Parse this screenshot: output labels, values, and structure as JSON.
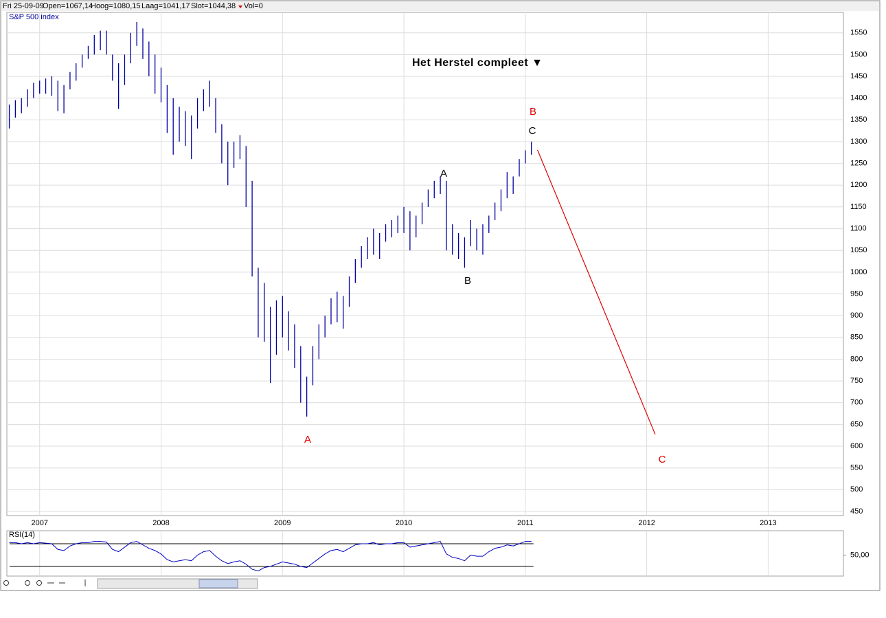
{
  "header": {
    "fields": [
      "Fri 25-09-09",
      "Open=1067,14",
      "Hoog=1080,15",
      "Laag=1041,17",
      "Slot=1044,38",
      "Vol=0"
    ]
  },
  "chart_data": [
    {
      "type": "hilo",
      "annotation": "Het Herstel compleet ▼",
      "x": [
        2006.75,
        2006.8,
        2006.85,
        2006.9,
        2006.95,
        2007.0,
        2007.05,
        2007.1,
        2007.15,
        2007.2,
        2007.25,
        2007.3,
        2007.35,
        2007.4,
        2007.45,
        2007.5,
        2007.55,
        2007.6,
        2007.65,
        2007.7,
        2007.75,
        2007.8,
        2007.85,
        2007.9,
        2007.95,
        2008.0,
        2008.05,
        2008.1,
        2008.15,
        2008.2,
        2008.25,
        2008.3,
        2008.35,
        2008.4,
        2008.45,
        2008.5,
        2008.55,
        2008.6,
        2008.65,
        2008.7,
        2008.75,
        2008.8,
        2008.85,
        2008.9,
        2008.95,
        2009.0,
        2009.05,
        2009.1,
        2009.15,
        2009.2,
        2009.25,
        2009.3,
        2009.35,
        2009.4,
        2009.45,
        2009.5,
        2009.55,
        2009.6,
        2009.65,
        2009.7,
        2009.75,
        2009.8,
        2009.85,
        2009.9,
        2009.95,
        2010.0,
        2010.05,
        2010.1,
        2010.15,
        2010.2,
        2010.25,
        2010.3,
        2010.35,
        2010.4,
        2010.45,
        2010.5,
        2010.55,
        2010.6,
        2010.65,
        2010.7,
        2010.75,
        2010.8,
        2010.85,
        2010.9,
        2010.95,
        2011.0,
        2011.05
      ],
      "series": [
        {
          "name": "S&P 500 index",
          "color": "#0000a0",
          "high": [
            1385,
            1395,
            1400,
            1420,
            1435,
            1440,
            1445,
            1450,
            1440,
            1430,
            1460,
            1480,
            1500,
            1520,
            1545,
            1555,
            1555,
            1500,
            1480,
            1500,
            1550,
            1575,
            1560,
            1530,
            1500,
            1470,
            1430,
            1400,
            1380,
            1370,
            1360,
            1400,
            1420,
            1440,
            1400,
            1340,
            1300,
            1300,
            1315,
            1290,
            1210,
            1010,
            975,
            920,
            935,
            945,
            910,
            880,
            830,
            760,
            830,
            880,
            900,
            940,
            955,
            945,
            990,
            1030,
            1060,
            1080,
            1100,
            1090,
            1110,
            1120,
            1130,
            1150,
            1140,
            1130,
            1160,
            1190,
            1210,
            1220,
            1210,
            1110,
            1090,
            1080,
            1120,
            1100,
            1110,
            1130,
            1160,
            1190,
            1230,
            1220,
            1260,
            1280,
            1300
          ],
          "low": [
            1330,
            1355,
            1365,
            1380,
            1400,
            1410,
            1410,
            1405,
            1370,
            1365,
            1420,
            1440,
            1470,
            1490,
            1500,
            1510,
            1500,
            1440,
            1375,
            1430,
            1480,
            1520,
            1490,
            1450,
            1410,
            1390,
            1320,
            1270,
            1300,
            1290,
            1260,
            1330,
            1370,
            1380,
            1320,
            1250,
            1200,
            1240,
            1260,
            1150,
            990,
            850,
            840,
            745,
            810,
            850,
            820,
            780,
            700,
            668,
            740,
            800,
            850,
            880,
            885,
            870,
            920,
            975,
            1010,
            1030,
            1040,
            1030,
            1070,
            1080,
            1090,
            1090,
            1050,
            1080,
            1110,
            1150,
            1170,
            1180,
            1050,
            1040,
            1030,
            1010,
            1060,
            1050,
            1040,
            1090,
            1120,
            1140,
            1170,
            1180,
            1220,
            1250,
            1270
          ]
        }
      ],
      "projection": {
        "x": [
          2011.1,
          2012.07
        ],
        "values": [
          1281,
          627
        ],
        "color": "#e00000"
      },
      "wave_labels": [
        {
          "text": "A",
          "color": "#e00000"
        },
        {
          "text": "B",
          "color": "#e00000"
        },
        {
          "text": "C",
          "color": "#e00000"
        },
        {
          "text": "A",
          "color": "#000000"
        },
        {
          "text": "B",
          "color": "#000000"
        },
        {
          "text": "C",
          "color": "#000000"
        }
      ],
      "xlim": [
        2006.73,
        2013.62
      ],
      "xticks": [
        2007,
        2008,
        2009,
        2010,
        2011,
        2012,
        2013
      ],
      "ylim": [
        440.5,
        1597
      ],
      "yticks": [
        450,
        500,
        550,
        600,
        650,
        700,
        750,
        800,
        850,
        900,
        950,
        1000,
        1050,
        1100,
        1150,
        1200,
        1250,
        1300,
        1350,
        1400,
        1450,
        1500,
        1550
      ],
      "grid": true
    },
    {
      "type": "line",
      "series": [
        {
          "name": "RSI(14)",
          "color": "#0000c0",
          "values": [
            72,
            72,
            70,
            72,
            70,
            72,
            71,
            70,
            60,
            58,
            66,
            70,
            72,
            72,
            74,
            74,
            73,
            60,
            56,
            64,
            72,
            74,
            68,
            62,
            58,
            52,
            42,
            38,
            40,
            42,
            40,
            50,
            56,
            58,
            48,
            40,
            35,
            38,
            40,
            34,
            25,
            22,
            28,
            30,
            34,
            38,
            36,
            34,
            30,
            28,
            36,
            44,
            52,
            58,
            60,
            56,
            62,
            68,
            70,
            70,
            72,
            68,
            70,
            70,
            72,
            72,
            64,
            66,
            68,
            70,
            72,
            74,
            52,
            46,
            44,
            40,
            50,
            48,
            48,
            56,
            62,
            64,
            68,
            66,
            70,
            74,
            74
          ]
        }
      ],
      "ref_lines": [
        70,
        30
      ],
      "ylim": [
        13,
        93
      ],
      "yticks": [
        {
          "value": 50,
          "label": "50,00"
        }
      ],
      "grid": true
    }
  ]
}
